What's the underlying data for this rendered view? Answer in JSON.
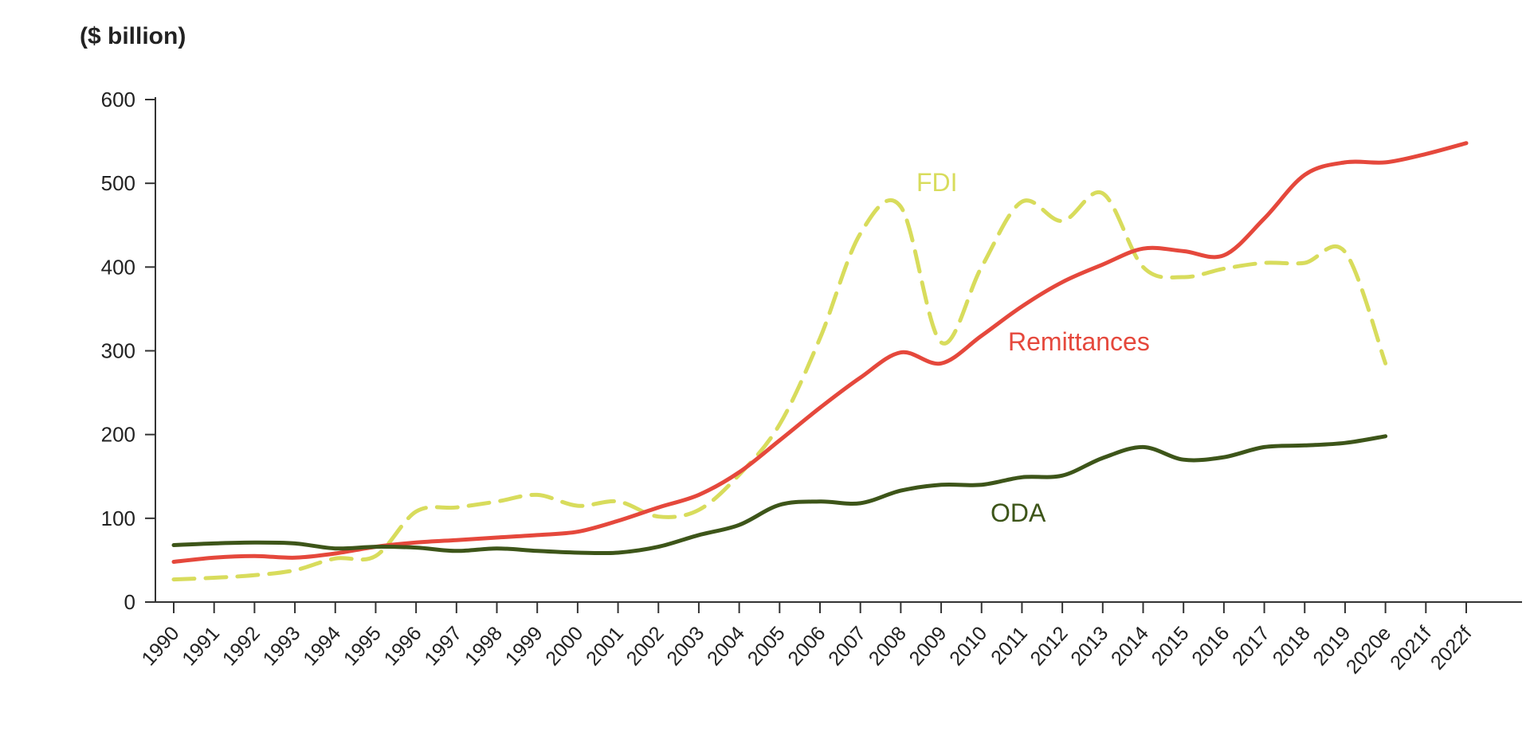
{
  "chart_data": {
    "type": "line",
    "unit_label": "($ billion)",
    "x": [
      "1990",
      "1991",
      "1992",
      "1993",
      "1994",
      "1995",
      "1996",
      "1997",
      "1998",
      "1999",
      "2000",
      "2001",
      "2002",
      "2003",
      "2004",
      "2005",
      "2006",
      "2007",
      "2008",
      "2009",
      "2010",
      "2011",
      "2012",
      "2013",
      "2014",
      "2015",
      "2016",
      "2017",
      "2018",
      "2019",
      "2020e",
      "2021f",
      "2022f"
    ],
    "yticks": [
      0,
      100,
      200,
      300,
      400,
      500,
      600
    ],
    "ylim": [
      0,
      600
    ],
    "grid": false,
    "series": [
      {
        "name": "FDI",
        "color": "#d8dc5c",
        "dash": true,
        "values": [
          27,
          29,
          32,
          38,
          52,
          55,
          108,
          113,
          120,
          128,
          115,
          120,
          102,
          110,
          152,
          212,
          315,
          440,
          472,
          310,
          400,
          478,
          455,
          488,
          400,
          388,
          398,
          405,
          405,
          418,
          285,
          null,
          null
        ]
      },
      {
        "name": "Remittances",
        "color": "#e5483c",
        "dash": false,
        "values": [
          48,
          53,
          55,
          53,
          58,
          66,
          71,
          74,
          77,
          80,
          84,
          97,
          113,
          128,
          155,
          193,
          232,
          268,
          298,
          285,
          318,
          353,
          382,
          403,
          422,
          419,
          414,
          458,
          510,
          525,
          525,
          535,
          548
        ]
      },
      {
        "name": "ODA",
        "color": "#3d5519",
        "dash": false,
        "values": [
          68,
          70,
          71,
          70,
          64,
          66,
          65,
          61,
          64,
          61,
          59,
          59,
          66,
          80,
          92,
          116,
          120,
          118,
          133,
          140,
          140,
          149,
          151,
          172,
          185,
          170,
          173,
          185,
          187,
          190,
          198,
          null,
          null
        ]
      }
    ]
  }
}
